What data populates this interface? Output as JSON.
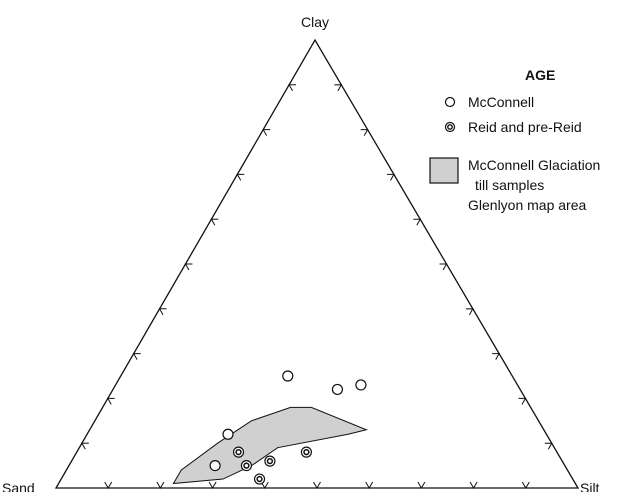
{
  "chart_data": {
    "type": "ternary-scatter",
    "vertices": {
      "top": "Clay",
      "left": "Sand",
      "right": "Silt"
    },
    "ticks_per_side": 10,
    "legend": {
      "title": "AGE",
      "items": [
        {
          "symbol": "open-circle",
          "label": "McConnell"
        },
        {
          "symbol": "double-circle",
          "label": "Reid and pre-Reid"
        }
      ],
      "area_item": {
        "lines": [
          "McConnell Glaciation",
          "till samples",
          "Glenlyon map area"
        ]
      }
    },
    "series": [
      {
        "name": "McConnell",
        "marker": "open-circle",
        "points": [
          {
            "sand": 0.43,
            "silt": 0.32,
            "clay": 0.25
          },
          {
            "sand": 0.35,
            "silt": 0.43,
            "clay": 0.22
          },
          {
            "sand": 0.3,
            "silt": 0.47,
            "clay": 0.23
          },
          {
            "sand": 0.61,
            "silt": 0.27,
            "clay": 0.12
          },
          {
            "sand": 0.67,
            "silt": 0.28,
            "clay": 0.05
          }
        ]
      },
      {
        "name": "Reid and pre-Reid",
        "marker": "double-circle",
        "points": [
          {
            "sand": 0.61,
            "silt": 0.31,
            "clay": 0.08
          },
          {
            "sand": 0.61,
            "silt": 0.34,
            "clay": 0.05
          },
          {
            "sand": 0.56,
            "silt": 0.38,
            "clay": 0.06
          },
          {
            "sand": 0.48,
            "silt": 0.44,
            "clay": 0.08
          },
          {
            "sand": 0.6,
            "silt": 0.38,
            "clay": 0.02
          }
        ]
      }
    ],
    "field": {
      "name": "McConnell Glaciation till samples",
      "polygon": [
        {
          "sand": 0.77,
          "silt": 0.22,
          "clay": 0.01
        },
        {
          "sand": 0.74,
          "silt": 0.22,
          "clay": 0.04
        },
        {
          "sand": 0.64,
          "silt": 0.26,
          "clay": 0.1
        },
        {
          "sand": 0.55,
          "silt": 0.3,
          "clay": 0.15
        },
        {
          "sand": 0.46,
          "silt": 0.36,
          "clay": 0.18
        },
        {
          "sand": 0.42,
          "silt": 0.4,
          "clay": 0.18
        },
        {
          "sand": 0.34,
          "silt": 0.53,
          "clay": 0.13
        },
        {
          "sand": 0.38,
          "silt": 0.5,
          "clay": 0.12
        },
        {
          "sand": 0.53,
          "silt": 0.38,
          "clay": 0.09
        },
        {
          "sand": 0.6,
          "silt": 0.35,
          "clay": 0.05
        },
        {
          "sand": 0.67,
          "silt": 0.31,
          "clay": 0.02
        }
      ],
      "fill": "#d0d0d0"
    }
  }
}
